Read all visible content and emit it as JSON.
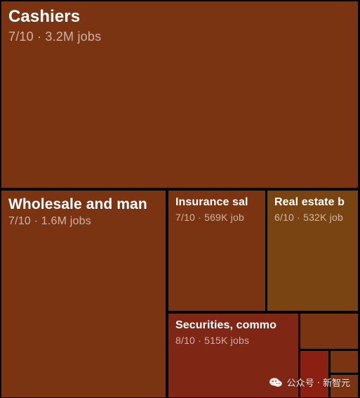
{
  "chart_data": {
    "type": "treemap",
    "colors": {
      "background": "#000000",
      "tile_default": "#7b3412",
      "tile_real_estate": "#7a4312",
      "tile_securities": "#7f2614",
      "small_tile_red": "#8a1f12"
    },
    "tiles": [
      {
        "label": "Cashiers",
        "score": "7/10",
        "jobs": "3.2M jobs",
        "subtitle": "7/10 · 3.2M jobs",
        "color": "#7b3412"
      },
      {
        "label": "Wholesale and man",
        "score": "7/10",
        "jobs": "1.6M jobs",
        "subtitle": "7/10 · 1.6M jobs",
        "color": "#7b3412"
      },
      {
        "label": "Insurance sal",
        "score": "7/10",
        "jobs": "569K job",
        "subtitle": "7/10 · 569K job",
        "color": "#7b3412"
      },
      {
        "label": "Real estate b",
        "score": "6/10",
        "jobs": "532K job",
        "subtitle": "6/10 · 532K job",
        "color": "#7a4312"
      },
      {
        "label": "Securities, commo",
        "score": "8/10",
        "jobs": "515K jobs",
        "subtitle": "8/10 · 515K jobs",
        "color": "#7f2614"
      },
      {
        "label": "",
        "score": "",
        "jobs": "",
        "subtitle": "",
        "color": "#7b3412"
      },
      {
        "label": "",
        "score": "",
        "jobs": "",
        "subtitle": "",
        "color": "#8a1f12"
      },
      {
        "label": "",
        "score": "",
        "jobs": "",
        "subtitle": "",
        "color": "#7b3412"
      },
      {
        "label": "",
        "score": "",
        "jobs": "",
        "subtitle": "",
        "color": "#7b3412"
      }
    ]
  },
  "watermark": {
    "text": "公众号 · 新智元",
    "icon": "wechat-icon"
  }
}
